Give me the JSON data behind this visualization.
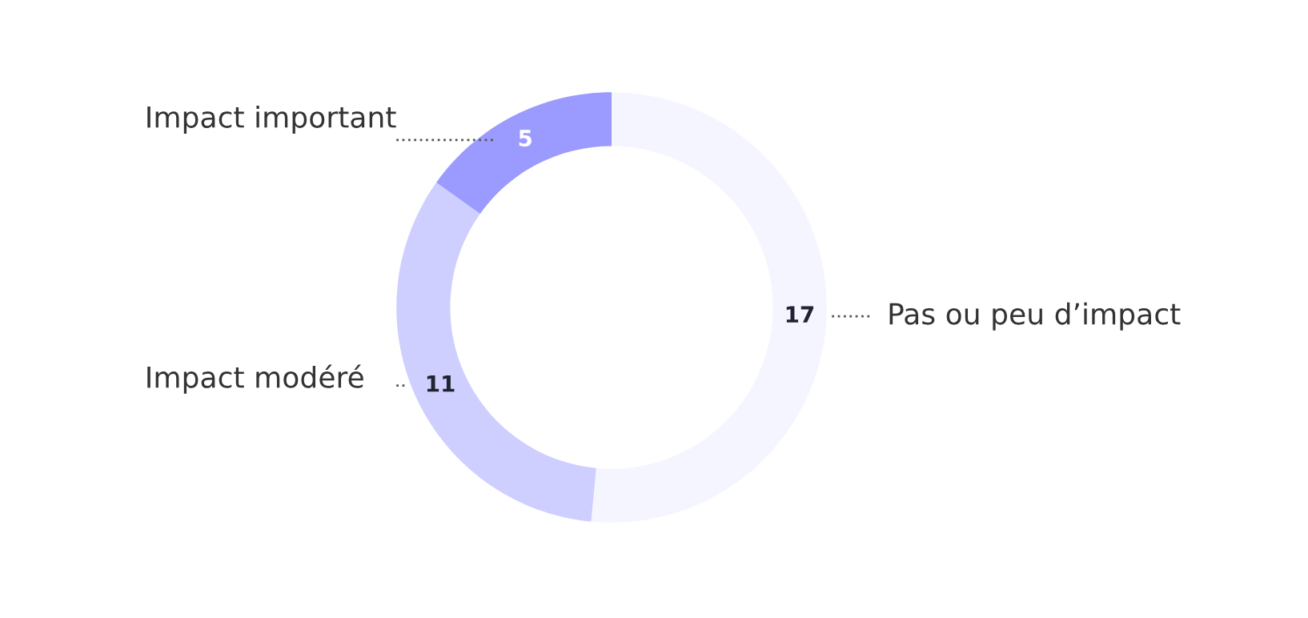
{
  "chart_data": {
    "type": "donut",
    "categories": [
      "Pas ou peu d’impact",
      "Impact modéré",
      "Impact important"
    ],
    "values": [
      17,
      11,
      5
    ],
    "colors": [
      "#f5f5ff",
      "#cfcfff",
      "#9b9bff"
    ],
    "data_labels": true,
    "legend": false
  }
}
